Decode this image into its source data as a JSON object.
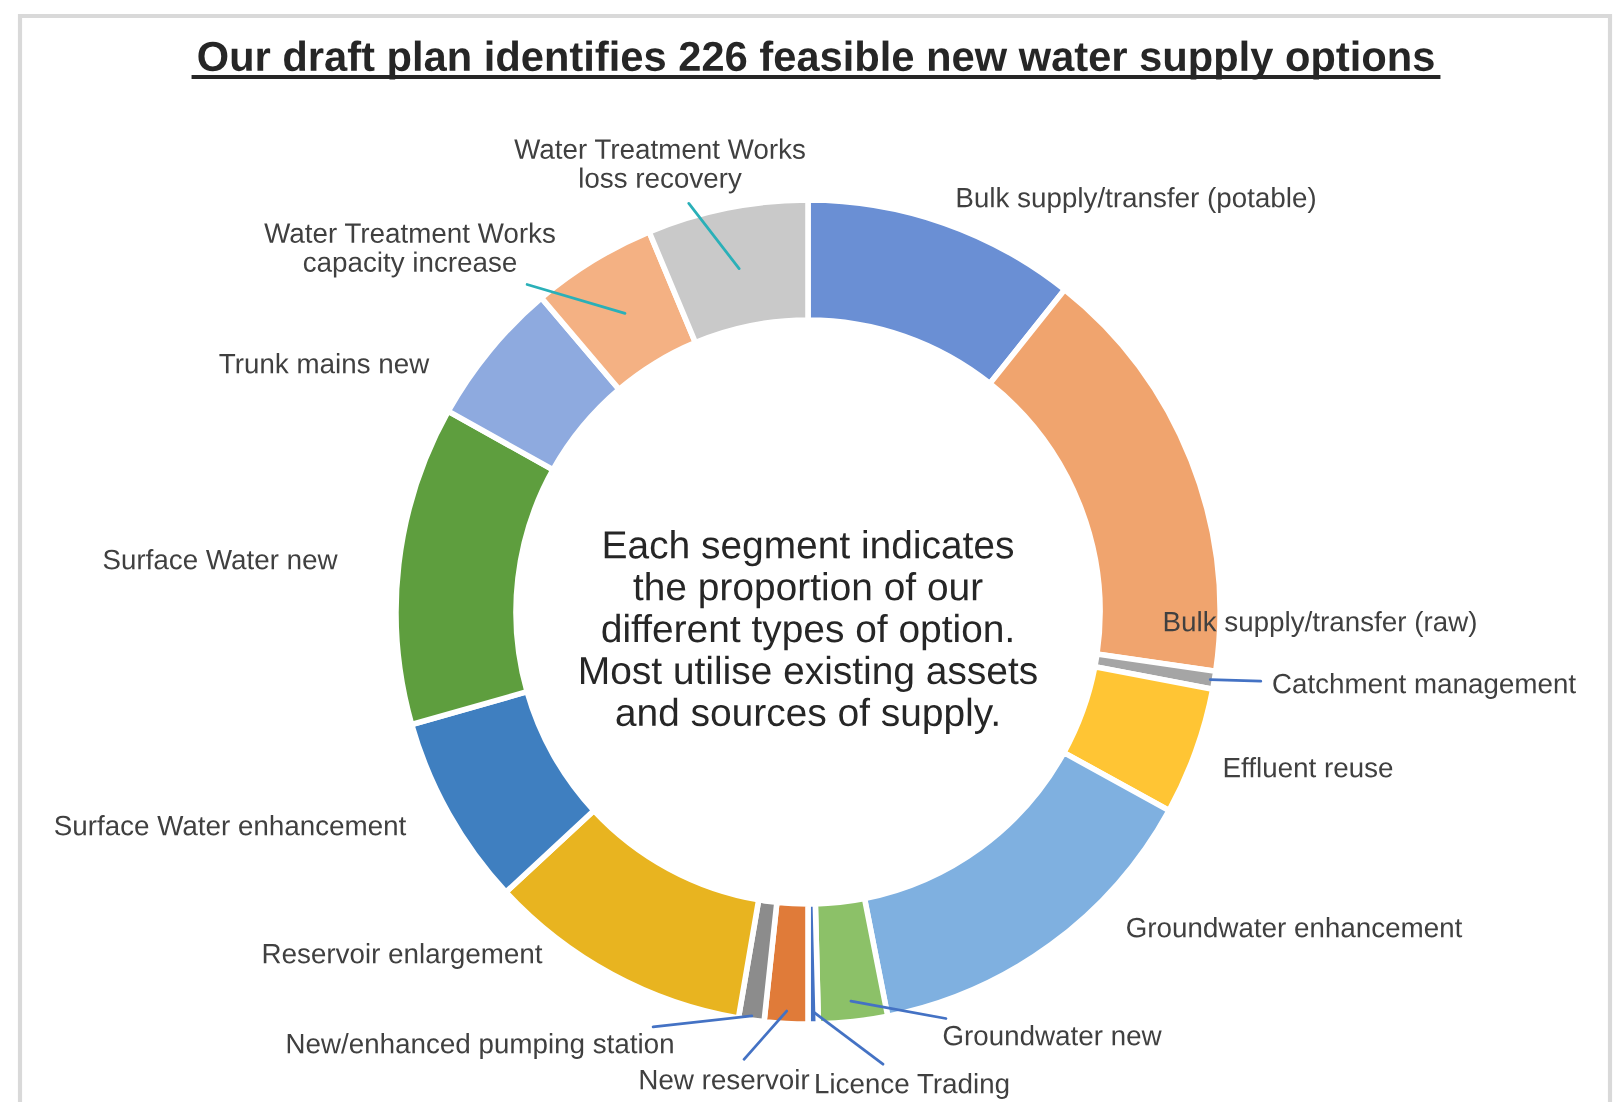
{
  "chart_data": {
    "type": "donut",
    "title": "Our draft plan identifies 226 feasible new water supply options",
    "categories": [
      "Bulk supply/transfer (potable)",
      "Bulk supply/transfer (raw)",
      "Catchment management",
      "Effluent reuse",
      "Groundwater enhancement",
      "Groundwater new",
      "Licence Trading",
      "New reservoir",
      "New/enhanced pumping station",
      "Reservoir enlargement",
      "Surface Water enhancement",
      "Surface Water new",
      "Trunk mains new",
      "Water Treatment Works\ncapacity increase",
      "Water Treatment Works\nloss recovery"
    ],
    "values": [
      10.7,
      16.6,
      0.7,
      5.0,
      13.9,
      2.7,
      0.4,
      1.7,
      1.0,
      10.4,
      7.5,
      12.5,
      5.7,
      4.9,
      6.3
    ],
    "colors": [
      "#6a8fd4",
      "#f0a46e",
      "#a5a5a5",
      "#ffc534",
      "#7fb0e0",
      "#8cc168",
      "#4472c4",
      "#e07b39",
      "#8c8c8c",
      "#e8b420",
      "#3f7fc0",
      "#5e9e3e",
      "#8eaadf",
      "#f4b183",
      "#c9c9c9"
    ],
    "annotations": [
      "Each segment indicates\nthe proportion of our\ndifferent types of option.\nMost utilise existing assets\nand sources of supply."
    ]
  }
}
